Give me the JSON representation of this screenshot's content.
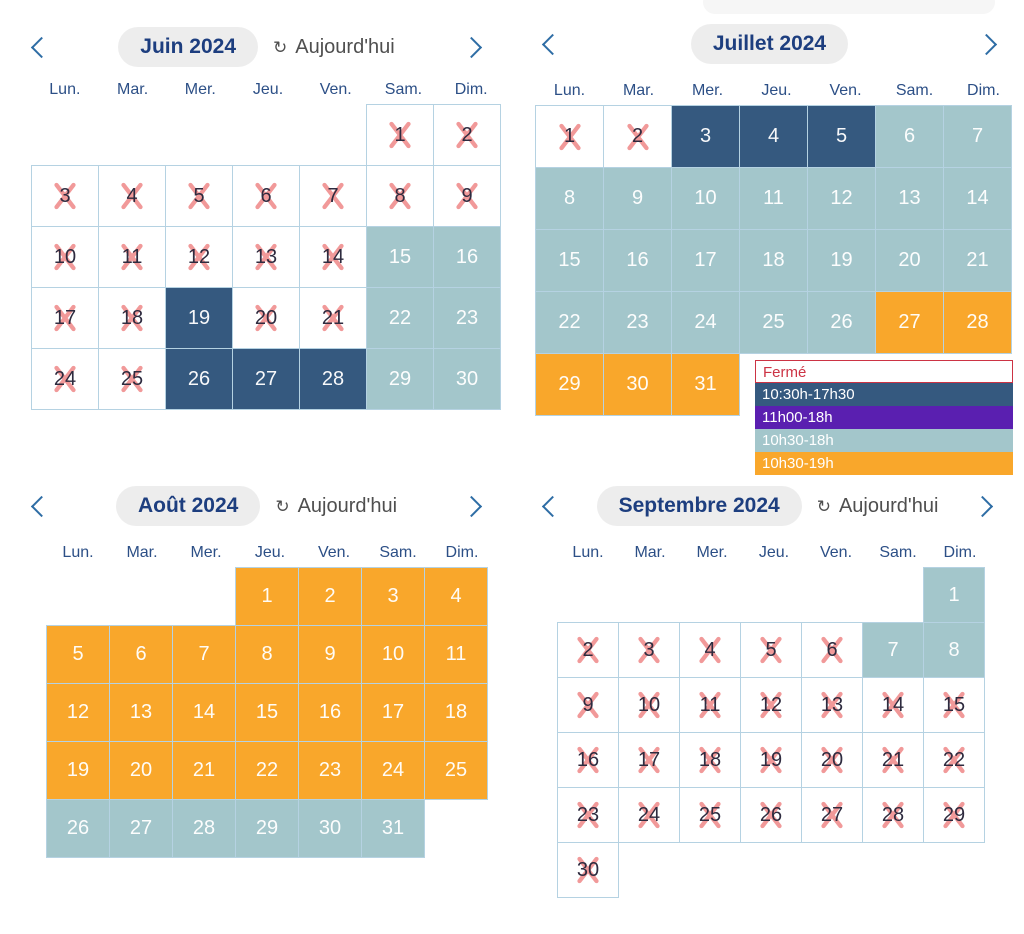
{
  "ui": {
    "today_label": "Aujourd'hui",
    "refresh_icon": "↻"
  },
  "colors": {
    "title_navy": "#1d3e7f",
    "day_header_blue": "#2c4f86",
    "arrow_blue": "#2e6da5",
    "badge_bg": "#ededed",
    "today_text": "#4f4f4f",
    "cell_border": "#b5d2e2",
    "closed_number": "#2e2b3f",
    "closed_x": "#ee8787",
    "open_teal": "#a3c6cb",
    "open_darkblue": "#35597f",
    "open_orange": "#f9a72b",
    "legend_purple": "#5a1fb0",
    "ferme_red": "#cc3344"
  },
  "day_headers": [
    "Lun.",
    "Mar.",
    "Mer.",
    "Jeu.",
    "Ven.",
    "Sam.",
    "Dim."
  ],
  "legend": {
    "items": [
      {
        "label": "Fermé",
        "style": "ferme"
      },
      {
        "label": "10:30h-17h30",
        "style": "dark"
      },
      {
        "label": "11h00-18h",
        "style": "purple"
      },
      {
        "label": "10h30-18h",
        "style": "teal"
      },
      {
        "label": "10h30-19h",
        "style": "orange"
      }
    ]
  },
  "calendars": [
    {
      "key": "juin",
      "title": "Juin 2024",
      "show_today": true,
      "weeks": [
        [
          null,
          null,
          null,
          null,
          null,
          {
            "d": 1,
            "s": "closed"
          },
          {
            "d": 2,
            "s": "closed"
          }
        ],
        [
          {
            "d": 3,
            "s": "closed"
          },
          {
            "d": 4,
            "s": "closed"
          },
          {
            "d": 5,
            "s": "closed"
          },
          {
            "d": 6,
            "s": "closed"
          },
          {
            "d": 7,
            "s": "closed"
          },
          {
            "d": 8,
            "s": "closed"
          },
          {
            "d": 9,
            "s": "closed"
          }
        ],
        [
          {
            "d": 10,
            "s": "closed"
          },
          {
            "d": 11,
            "s": "closed"
          },
          {
            "d": 12,
            "s": "closed"
          },
          {
            "d": 13,
            "s": "closed"
          },
          {
            "d": 14,
            "s": "closed"
          },
          {
            "d": 15,
            "s": "teal"
          },
          {
            "d": 16,
            "s": "teal"
          }
        ],
        [
          {
            "d": 17,
            "s": "closed"
          },
          {
            "d": 18,
            "s": "closed"
          },
          {
            "d": 19,
            "s": "dark"
          },
          {
            "d": 20,
            "s": "closed"
          },
          {
            "d": 21,
            "s": "closed"
          },
          {
            "d": 22,
            "s": "teal"
          },
          {
            "d": 23,
            "s": "teal"
          }
        ],
        [
          {
            "d": 24,
            "s": "closed"
          },
          {
            "d": 25,
            "s": "closed"
          },
          {
            "d": 26,
            "s": "dark"
          },
          {
            "d": 27,
            "s": "dark"
          },
          {
            "d": 28,
            "s": "dark"
          },
          {
            "d": 29,
            "s": "teal"
          },
          {
            "d": 30,
            "s": "teal"
          }
        ]
      ]
    },
    {
      "key": "juillet",
      "title": "Juillet 2024",
      "show_today": false,
      "weeks": [
        [
          {
            "d": 1,
            "s": "closed"
          },
          {
            "d": 2,
            "s": "closed"
          },
          {
            "d": 3,
            "s": "dark"
          },
          {
            "d": 4,
            "s": "dark"
          },
          {
            "d": 5,
            "s": "dark"
          },
          {
            "d": 6,
            "s": "teal"
          },
          {
            "d": 7,
            "s": "teal"
          }
        ],
        [
          {
            "d": 8,
            "s": "teal"
          },
          {
            "d": 9,
            "s": "teal"
          },
          {
            "d": 10,
            "s": "teal"
          },
          {
            "d": 11,
            "s": "teal"
          },
          {
            "d": 12,
            "s": "teal"
          },
          {
            "d": 13,
            "s": "teal"
          },
          {
            "d": 14,
            "s": "teal"
          }
        ],
        [
          {
            "d": 15,
            "s": "teal"
          },
          {
            "d": 16,
            "s": "teal"
          },
          {
            "d": 17,
            "s": "teal"
          },
          {
            "d": 18,
            "s": "teal"
          },
          {
            "d": 19,
            "s": "teal"
          },
          {
            "d": 20,
            "s": "teal"
          },
          {
            "d": 21,
            "s": "teal"
          }
        ],
        [
          {
            "d": 22,
            "s": "teal"
          },
          {
            "d": 23,
            "s": "teal"
          },
          {
            "d": 24,
            "s": "teal"
          },
          {
            "d": 25,
            "s": "teal"
          },
          {
            "d": 26,
            "s": "teal"
          },
          {
            "d": 27,
            "s": "orange"
          },
          {
            "d": 28,
            "s": "orange"
          }
        ],
        [
          {
            "d": 29,
            "s": "orange"
          },
          {
            "d": 30,
            "s": "orange"
          },
          {
            "d": 31,
            "s": "orange"
          },
          null,
          null,
          null,
          null
        ]
      ]
    },
    {
      "key": "aout",
      "title": "Août 2024",
      "show_today": true,
      "weeks": [
        [
          null,
          null,
          null,
          {
            "d": 1,
            "s": "orange"
          },
          {
            "d": 2,
            "s": "orange"
          },
          {
            "d": 3,
            "s": "orange"
          },
          {
            "d": 4,
            "s": "orange"
          }
        ],
        [
          {
            "d": 5,
            "s": "orange"
          },
          {
            "d": 6,
            "s": "orange"
          },
          {
            "d": 7,
            "s": "orange"
          },
          {
            "d": 8,
            "s": "orange"
          },
          {
            "d": 9,
            "s": "orange"
          },
          {
            "d": 10,
            "s": "orange"
          },
          {
            "d": 11,
            "s": "orange"
          }
        ],
        [
          {
            "d": 12,
            "s": "orange"
          },
          {
            "d": 13,
            "s": "orange"
          },
          {
            "d": 14,
            "s": "orange"
          },
          {
            "d": 15,
            "s": "orange"
          },
          {
            "d": 16,
            "s": "orange"
          },
          {
            "d": 17,
            "s": "orange"
          },
          {
            "d": 18,
            "s": "orange"
          }
        ],
        [
          {
            "d": 19,
            "s": "orange"
          },
          {
            "d": 20,
            "s": "orange"
          },
          {
            "d": 21,
            "s": "orange"
          },
          {
            "d": 22,
            "s": "orange"
          },
          {
            "d": 23,
            "s": "orange"
          },
          {
            "d": 24,
            "s": "orange"
          },
          {
            "d": 25,
            "s": "orange"
          }
        ],
        [
          {
            "d": 26,
            "s": "teal"
          },
          {
            "d": 27,
            "s": "teal"
          },
          {
            "d": 28,
            "s": "teal"
          },
          {
            "d": 29,
            "s": "teal"
          },
          {
            "d": 30,
            "s": "teal"
          },
          {
            "d": 31,
            "s": "teal"
          },
          null
        ]
      ]
    },
    {
      "key": "septembre",
      "title": "Septembre 2024",
      "show_today": true,
      "weeks": [
        [
          null,
          null,
          null,
          null,
          null,
          null,
          {
            "d": 1,
            "s": "teal"
          }
        ],
        [
          {
            "d": 2,
            "s": "closed"
          },
          {
            "d": 3,
            "s": "closed"
          },
          {
            "d": 4,
            "s": "closed"
          },
          {
            "d": 5,
            "s": "closed"
          },
          {
            "d": 6,
            "s": "closed"
          },
          {
            "d": 7,
            "s": "teal"
          },
          {
            "d": 8,
            "s": "teal"
          }
        ],
        [
          {
            "d": 9,
            "s": "closed"
          },
          {
            "d": 10,
            "s": "closed"
          },
          {
            "d": 11,
            "s": "closed"
          },
          {
            "d": 12,
            "s": "closed"
          },
          {
            "d": 13,
            "s": "closed"
          },
          {
            "d": 14,
            "s": "closed"
          },
          {
            "d": 15,
            "s": "closed"
          }
        ],
        [
          {
            "d": 16,
            "s": "closed"
          },
          {
            "d": 17,
            "s": "closed"
          },
          {
            "d": 18,
            "s": "closed"
          },
          {
            "d": 19,
            "s": "closed"
          },
          {
            "d": 20,
            "s": "closed"
          },
          {
            "d": 21,
            "s": "closed"
          },
          {
            "d": 22,
            "s": "closed"
          }
        ],
        [
          {
            "d": 23,
            "s": "closed"
          },
          {
            "d": 24,
            "s": "closed"
          },
          {
            "d": 25,
            "s": "closed"
          },
          {
            "d": 26,
            "s": "closed"
          },
          {
            "d": 27,
            "s": "closed"
          },
          {
            "d": 28,
            "s": "closed"
          },
          {
            "d": 29,
            "s": "closed"
          }
        ],
        [
          {
            "d": 30,
            "s": "closed"
          },
          null,
          null,
          null,
          null,
          null,
          null
        ]
      ]
    }
  ]
}
